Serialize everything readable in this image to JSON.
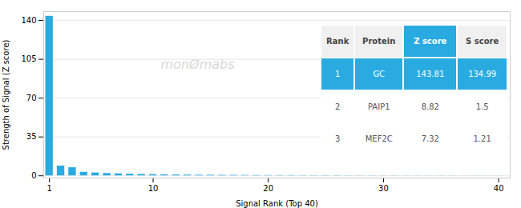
{
  "chart_data": {
    "type": "bar",
    "xlabel": "Signal Rank (Top 40)",
    "ylabel": "Strength of Signal (Z score)",
    "x": [
      1,
      2,
      3,
      4,
      5,
      6,
      7,
      8,
      9,
      10,
      11,
      12,
      13,
      14,
      15,
      16,
      17,
      18,
      19,
      20,
      21,
      22,
      23,
      24,
      25,
      26,
      27,
      28,
      29,
      30,
      31,
      32,
      33,
      34,
      35,
      36,
      37,
      38,
      39,
      40
    ],
    "values": [
      143.81,
      8.82,
      7.32,
      3.2,
      2.6,
      2.1,
      1.8,
      1.5,
      1.3,
      1.1,
      0.9,
      0.8,
      0.7,
      0.6,
      0.55,
      0.5,
      0.45,
      0.4,
      0.36,
      0.32,
      0.28,
      0.25,
      0.22,
      0.2,
      0.18,
      0.16,
      0.14,
      0.13,
      0.12,
      0.11,
      0.1,
      0.09,
      0.08,
      0.075,
      0.07,
      0.065,
      0.06,
      0.055,
      0.05,
      0.045
    ],
    "color": "#29ABE2",
    "xlim": [
      0.5,
      41
    ],
    "xticks": [
      1,
      10,
      20,
      30,
      40
    ],
    "ylim": [
      -2,
      148
    ],
    "yticks": [
      0,
      35,
      70,
      105,
      140
    ],
    "grid": true,
    "annotations": [
      "monØmabs"
    ],
    "table": {
      "columns": [
        "Rank",
        "Protein",
        "Z score",
        "S score"
      ],
      "rows": [
        [
          "1",
          "GC",
          "143.81",
          "134.99"
        ],
        [
          "2",
          "PAIP1",
          "8.82",
          "1.5"
        ],
        [
          "3",
          "MEF2C",
          "7.32",
          "1.21"
        ]
      ]
    }
  }
}
